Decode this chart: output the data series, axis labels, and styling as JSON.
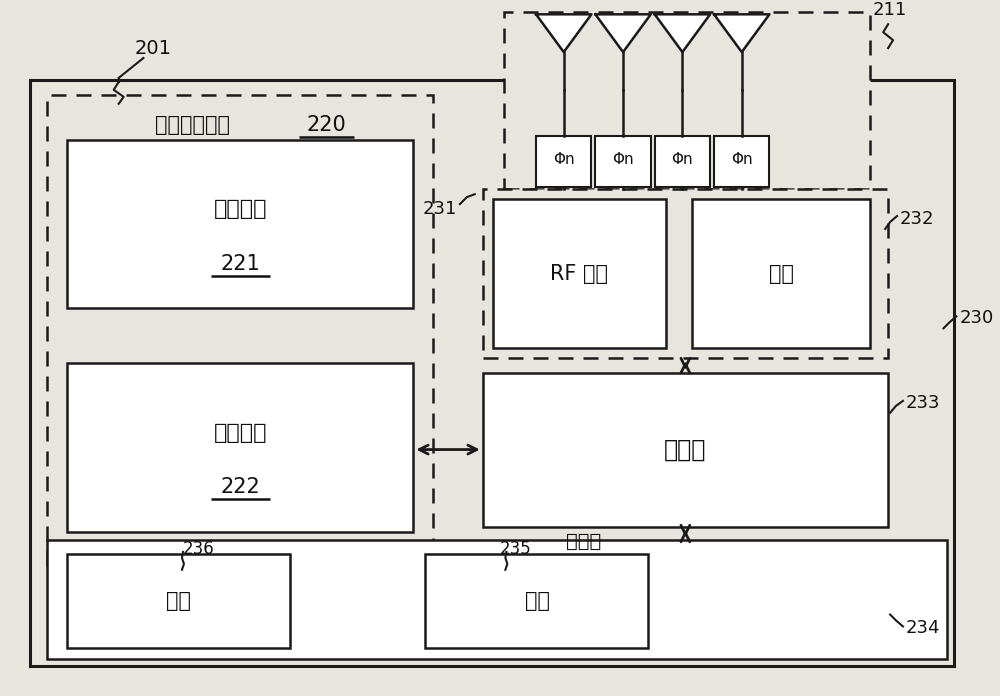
{
  "bg_color": "#e8e4de",
  "box_color": "#ffffff",
  "border_color": "#1a1a1a",
  "text_color": "#111111",
  "fig_width": 10.0,
  "fig_height": 6.96,
  "texts": {
    "201": "201",
    "211": "211",
    "220": "220",
    "221": "221",
    "222": "222",
    "230": "230",
    "231": "231",
    "232": "232",
    "233": "233",
    "234": "234",
    "235": "235",
    "236": "236",
    "beamctrl": "波束控制电路",
    "beamguide": "波束引导",
    "beamform": "波束形成",
    "rf": "RF 模块",
    "baseband": "基频",
    "processor": "处理器",
    "memory": "存储器",
    "codebook": "码书",
    "program": "程序",
    "phin": "Φn"
  }
}
